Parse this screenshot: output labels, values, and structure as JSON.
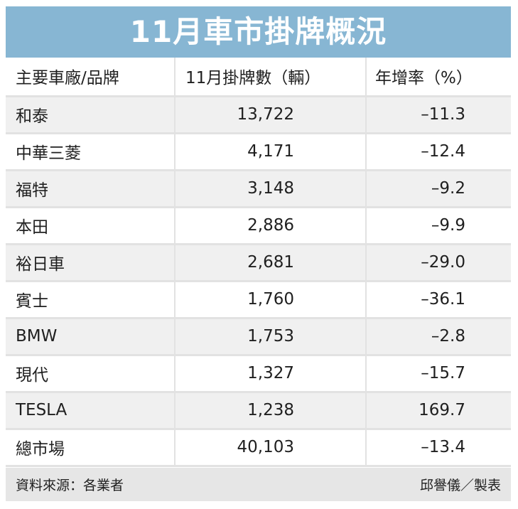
{
  "title": "11月車市掛牌概況",
  "chart_data": {
    "type": "table",
    "title": "11月車市掛牌概況",
    "columns": [
      "主要車廠/品牌",
      "11月掛牌數（輛）",
      "年增率（%）"
    ],
    "rows": [
      {
        "brand": "和泰",
        "units": "13,722",
        "yoy": "–11.3"
      },
      {
        "brand": "中華三菱",
        "units": "4,171",
        "yoy": "–12.4"
      },
      {
        "brand": "福特",
        "units": "3,148",
        "yoy": "–9.2"
      },
      {
        "brand": "本田",
        "units": "2,886",
        "yoy": "–9.9"
      },
      {
        "brand": "裕日車",
        "units": "2,681",
        "yoy": "–29.0"
      },
      {
        "brand": "賓士",
        "units": "1,760",
        "yoy": "–36.1"
      },
      {
        "brand": "BMW",
        "units": "1,753",
        "yoy": "–2.8"
      },
      {
        "brand": "現代",
        "units": "1,327",
        "yoy": "–15.7"
      },
      {
        "brand": "TESLA",
        "units": "1,238",
        "yoy": "169.7"
      },
      {
        "brand": "總市場",
        "units": "40,103",
        "yoy": "–13.4"
      }
    ]
  },
  "footer": {
    "source": "資料來源：各業者",
    "credit": "邱譽儀／製表"
  },
  "colors": {
    "title_bar": "#87b6d3",
    "title_text": "#ffffff",
    "stripe": "#f0f0f0",
    "footer_bg": "#e6e6e6"
  }
}
